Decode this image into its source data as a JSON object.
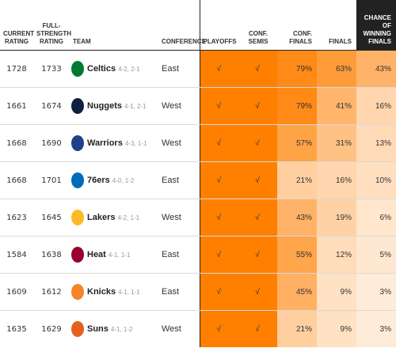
{
  "headers": {
    "current_rating": "CURRENT RATING",
    "full_strength_rating": "FULL-STRENGTH RATING",
    "team": "TEAM",
    "conference": "CONFERENCE",
    "playoffs": "PLAYOFFS",
    "conf_semis": "CONF. SEMIS",
    "conf_finals": "CONF. FINALS",
    "finals": "FINALS",
    "win_finals": "CHANCE OF WINNING FINALS"
  },
  "colors": {
    "header_dark": "#222222",
    "scale_low": "#fff3e8",
    "scale_high": "#ff7f00"
  },
  "chart_data": {
    "type": "table",
    "columns": [
      "Current rating",
      "Full-strength rating",
      "Team",
      "Conference",
      "Playoffs",
      "Conf. semis",
      "Conf. finals",
      "Finals",
      "Chance of winning finals"
    ],
    "rows": [
      {
        "current": "1728",
        "full": "1733",
        "team": "Celtics",
        "record": "4-2, 2-1",
        "conference": "East",
        "playoffs": "√",
        "semis": "√",
        "conf_finals": "79%",
        "finals": "63%",
        "win": "43%",
        "conf_finals_v": 79,
        "finals_v": 63,
        "win_v": 43,
        "logo_color": "#007a33",
        "logo_icon": "celtics-logo-icon"
      },
      {
        "current": "1661",
        "full": "1674",
        "team": "Nuggets",
        "record": "4-1, 2-1",
        "conference": "West",
        "playoffs": "√",
        "semis": "√",
        "conf_finals": "79%",
        "finals": "41%",
        "win": "16%",
        "conf_finals_v": 79,
        "finals_v": 41,
        "win_v": 16,
        "logo_color": "#0e2240",
        "logo_icon": "nuggets-logo-icon"
      },
      {
        "current": "1668",
        "full": "1690",
        "team": "Warriors",
        "record": "4-3, 1-1",
        "conference": "West",
        "playoffs": "√",
        "semis": "√",
        "conf_finals": "57%",
        "finals": "31%",
        "win": "13%",
        "conf_finals_v": 57,
        "finals_v": 31,
        "win_v": 13,
        "logo_color": "#1d428a",
        "logo_icon": "warriors-logo-icon"
      },
      {
        "current": "1668",
        "full": "1701",
        "team": "76ers",
        "record": "4-0, 1-2",
        "conference": "East",
        "playoffs": "√",
        "semis": "√",
        "conf_finals": "21%",
        "finals": "16%",
        "win": "10%",
        "conf_finals_v": 21,
        "finals_v": 16,
        "win_v": 10,
        "logo_color": "#006bb6",
        "logo_icon": "sixers-logo-icon"
      },
      {
        "current": "1623",
        "full": "1645",
        "team": "Lakers",
        "record": "4-2, 1-1",
        "conference": "West",
        "playoffs": "√",
        "semis": "√",
        "conf_finals": "43%",
        "finals": "19%",
        "win": "6%",
        "conf_finals_v": 43,
        "finals_v": 19,
        "win_v": 6,
        "logo_color": "#fdb927",
        "logo_icon": "lakers-logo-icon"
      },
      {
        "current": "1584",
        "full": "1638",
        "team": "Heat",
        "record": "4-1, 1-1",
        "conference": "East",
        "playoffs": "√",
        "semis": "√",
        "conf_finals": "55%",
        "finals": "12%",
        "win": "5%",
        "conf_finals_v": 55,
        "finals_v": 12,
        "win_v": 5,
        "logo_color": "#98002e",
        "logo_icon": "heat-logo-icon"
      },
      {
        "current": "1609",
        "full": "1612",
        "team": "Knicks",
        "record": "4-1, 1-1",
        "conference": "East",
        "playoffs": "√",
        "semis": "√",
        "conf_finals": "45%",
        "finals": "9%",
        "win": "3%",
        "conf_finals_v": 45,
        "finals_v": 9,
        "win_v": 3,
        "logo_color": "#f58426",
        "logo_icon": "knicks-logo-icon"
      },
      {
        "current": "1635",
        "full": "1629",
        "team": "Suns",
        "record": "4-1, 1-2",
        "conference": "West",
        "playoffs": "√",
        "semis": "√",
        "conf_finals": "21%",
        "finals": "9%",
        "win": "3%",
        "conf_finals_v": 21,
        "finals_v": 9,
        "win_v": 3,
        "logo_color": "#e56020",
        "logo_icon": "suns-logo-icon"
      }
    ]
  }
}
